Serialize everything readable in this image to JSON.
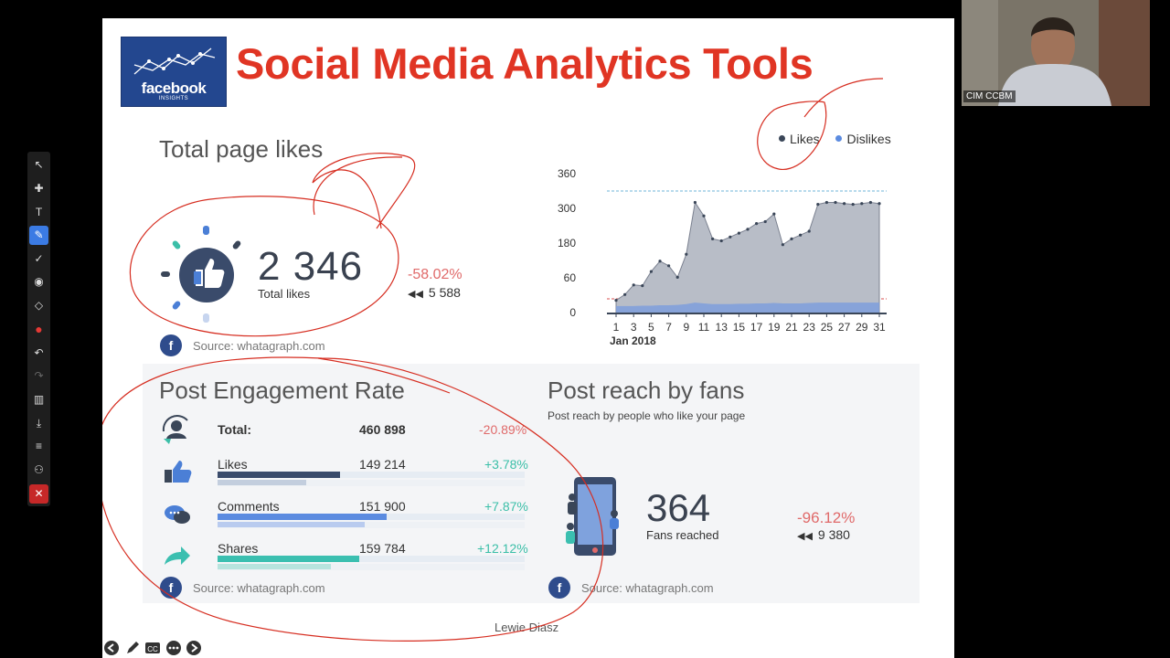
{
  "slide": {
    "title": "Social Media Analytics Tools",
    "logo": {
      "brand": "facebook",
      "sub": "INSIGHTS"
    },
    "speaker_caption": "Lewie Diasz"
  },
  "total_likes": {
    "title": "Total page likes",
    "value": "2 346",
    "label": "Total likes",
    "change": "-58.02%",
    "previous": "5 588",
    "source": "Source: whatagraph.com"
  },
  "chart_data": {
    "type": "area",
    "legend": [
      "Likes",
      "Dislikes"
    ],
    "legend_position": "top-right",
    "y_ticks": [
      "360",
      "300",
      "180",
      "60",
      "0"
    ],
    "x_ticks": [
      "1",
      "3",
      "5",
      "7",
      "9",
      "11",
      "13",
      "15",
      "17",
      "19",
      "21",
      "23",
      "25",
      "27",
      "29",
      "31"
    ],
    "x_caption": "Jan 2018",
    "series": [
      {
        "name": "Likes",
        "x": [
          1,
          2,
          3,
          4,
          5,
          6,
          7,
          8,
          9,
          10,
          11,
          12,
          13,
          14,
          15,
          16,
          17,
          18,
          19,
          20,
          21,
          22,
          23,
          24,
          25,
          26,
          27,
          28,
          29,
          30,
          31
        ],
        "values": [
          20,
          35,
          60,
          58,
          95,
          122,
          110,
          80,
          140,
          275,
          240,
          180,
          175,
          185,
          195,
          205,
          220,
          225,
          245,
          165,
          180,
          190,
          200,
          270,
          275,
          275,
          272,
          270,
          272,
          275,
          272
        ]
      },
      {
        "name": "Dislikes",
        "values": [
          5,
          5,
          5,
          6,
          6,
          7,
          7,
          8,
          10,
          14,
          12,
          10,
          10,
          10,
          11,
          11,
          12,
          12,
          13,
          12,
          12,
          12,
          13,
          14,
          14,
          14,
          14,
          14,
          14,
          14,
          14
        ]
      }
    ],
    "colors": {
      "likes_fill": "#b8bdc7",
      "likes_line": "#7b8190",
      "dislikes_fill": "#7e9fdc",
      "likes_dot": "#3a4658",
      "dislikes_dot": "#5b8be0"
    }
  },
  "engagement": {
    "title": "Post Engagement Rate",
    "total": {
      "label": "Total:",
      "value": "460 898",
      "change": "-20.89%"
    },
    "rows": [
      {
        "label": "Likes",
        "value": "149 214",
        "change": "+3.78%",
        "bar": 0.4,
        "bar2": 0.29,
        "color": "#3a4b6b"
      },
      {
        "label": "Comments",
        "value": "151 900",
        "change": "+7.87%",
        "bar": 0.55,
        "bar2": 0.48,
        "color": "#5b8be0"
      },
      {
        "label": "Shares",
        "value": "159 784",
        "change": "+12.12%",
        "bar": 0.46,
        "bar2": 0.37,
        "color": "#3bbfb0"
      }
    ],
    "source": "Source: whatagraph.com"
  },
  "reach": {
    "title": "Post reach by fans",
    "subtitle": "Post reach by people who like your page",
    "value": "364",
    "label": "Fans reached",
    "change": "-96.12%",
    "previous": "9 380",
    "source": "Source: whatagraph.com"
  },
  "video": {
    "name": "CIM CCBM"
  },
  "toolbar": [
    "pointer-icon",
    "plus-icon",
    "text-icon",
    "pen-icon",
    "check-icon",
    "target-icon",
    "eraser-icon",
    "color-icon",
    "undo-icon",
    "redo-icon",
    "trash-icon",
    "download-icon",
    "menu-icon",
    "users-icon",
    "close-icon"
  ],
  "controls": [
    "back-icon",
    "pen-icon",
    "cc-icon",
    "more-icon",
    "forward-icon"
  ]
}
